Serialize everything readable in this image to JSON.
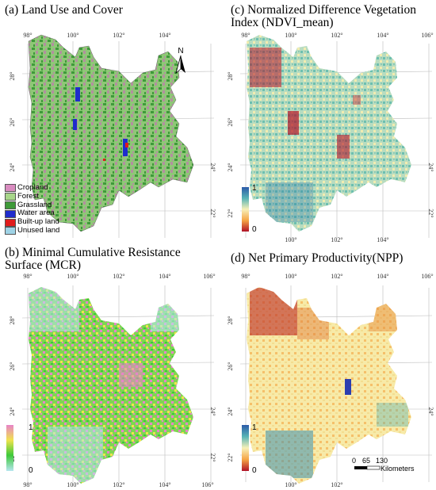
{
  "panels": {
    "a": {
      "title": "(a) Land Use and Cover",
      "north": "N",
      "legend": [
        {
          "label": "Cropland",
          "color": "#d98cc0"
        },
        {
          "label": "Forest",
          "color": "#a8d68a"
        },
        {
          "label": "Grassland",
          "color": "#3f9a3a"
        },
        {
          "label": "Water area",
          "color": "#1f2ccc"
        },
        {
          "label": "Built-up land",
          "color": "#e01c1c"
        },
        {
          "label": "Unused land",
          "color": "#9fd3e6"
        }
      ]
    },
    "b": {
      "title_line1": "(b) Minimal Cumulative Resistance",
      "title_line2": "Surface (MCR)",
      "cbar_max": "1",
      "cbar_min": "0",
      "cbar_colors": [
        "#e783c8",
        "#f0e34e",
        "#3ec93a",
        "#b6e6ef"
      ]
    },
    "c": {
      "title_line1": "(c) Normalized Difference Vegetation",
      "title_line2": "Index  (NDVI_mean)",
      "cbar_max": "1",
      "cbar_min": "0",
      "cbar_colors": [
        "#2b5aa8",
        "#57b3b5",
        "#f7f0b8",
        "#f5a544",
        "#b01227"
      ]
    },
    "d": {
      "title": "(d) Net Primary Productivity(NPP)",
      "cbar_max": "1",
      "cbar_min": "0",
      "cbar_colors": [
        "#2b5aa8",
        "#57b3b5",
        "#f7f0b8",
        "#f5a544",
        "#b01227"
      ],
      "scalebar": {
        "ticks": [
          "0",
          "65",
          "130"
        ],
        "unit": "Kilometers"
      }
    }
  },
  "axes": {
    "lon_ticks": [
      "98°",
      "100°",
      "102°",
      "104°",
      "106°"
    ],
    "lat_ticks": [
      "28°",
      "26°",
      "24°",
      "22°"
    ]
  }
}
